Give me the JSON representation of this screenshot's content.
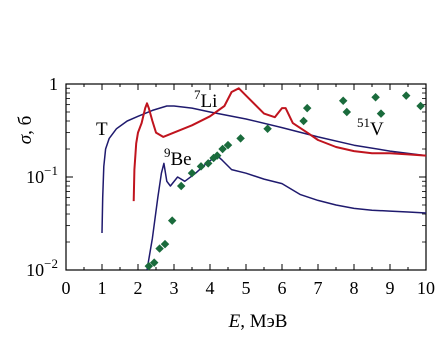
{
  "chart_data": {
    "type": "line",
    "xlabel": "E, МэВ",
    "ylabel": "σ, б",
    "xlim": [
      0,
      10
    ],
    "ylim": [
      0.01,
      1
    ],
    "yscale": "log",
    "grid": false,
    "x_ticks": [
      "0",
      "1",
      "2",
      "3",
      "4",
      "5",
      "6",
      "7",
      "8",
      "9",
      "10"
    ],
    "y_ticks": [
      {
        "value": 1,
        "base": "1",
        "exp": ""
      },
      {
        "value": 0.1,
        "base": "10",
        "exp": "−1"
      },
      {
        "value": 0.01,
        "base": "10",
        "exp": "−2"
      }
    ],
    "series": [
      {
        "name": "T",
        "color": "#1f1a6e",
        "label_base": "T",
        "label_sup": "",
        "x": [
          1.0,
          1.02,
          1.05,
          1.1,
          1.2,
          1.4,
          1.7,
          2.0,
          2.4,
          2.8,
          3.0,
          3.5,
          4.0,
          5.0,
          6.0,
          7.0,
          8.0,
          9.0,
          10.0
        ],
        "y": [
          0.025,
          0.06,
          0.13,
          0.2,
          0.26,
          0.33,
          0.4,
          0.45,
          0.52,
          0.58,
          0.58,
          0.55,
          0.5,
          0.42,
          0.34,
          0.27,
          0.22,
          0.19,
          0.17
        ]
      },
      {
        "name": "7Li",
        "color": "#c0141e",
        "label_base": "Li",
        "label_sup": "7",
        "x": [
          1.88,
          1.9,
          1.95,
          2.0,
          2.1,
          2.2,
          2.25,
          2.3,
          2.4,
          2.5,
          2.7,
          3.0,
          3.5,
          4.0,
          4.4,
          4.6,
          4.8,
          5.0,
          5.5,
          5.8,
          6.0,
          6.1,
          6.3,
          6.7,
          7.0,
          7.5,
          8.0,
          8.5,
          9.0,
          9.5,
          10.0
        ],
        "y": [
          0.055,
          0.12,
          0.23,
          0.3,
          0.38,
          0.55,
          0.62,
          0.55,
          0.4,
          0.3,
          0.27,
          0.3,
          0.36,
          0.45,
          0.58,
          0.82,
          0.9,
          0.75,
          0.48,
          0.44,
          0.55,
          0.55,
          0.38,
          0.3,
          0.25,
          0.21,
          0.19,
          0.18,
          0.18,
          0.175,
          0.17
        ]
      },
      {
        "name": "9Be",
        "color": "#1f1a6e",
        "label_base": "Be",
        "label_sup": "9",
        "x": [
          2.25,
          2.4,
          2.55,
          2.65,
          2.72,
          2.8,
          2.9,
          3.1,
          3.3,
          3.6,
          3.9,
          4.2,
          4.35,
          4.6,
          5.0,
          5.5,
          6.0,
          6.5,
          7.0,
          7.5,
          8.0,
          8.5,
          9.0,
          9.5,
          10.0
        ],
        "y": [
          0.01,
          0.022,
          0.06,
          0.11,
          0.14,
          0.09,
          0.08,
          0.1,
          0.09,
          0.11,
          0.14,
          0.17,
          0.15,
          0.12,
          0.11,
          0.095,
          0.085,
          0.065,
          0.056,
          0.05,
          0.046,
          0.044,
          0.043,
          0.042,
          0.041
        ]
      },
      {
        "name": "51V",
        "color": "#1a6b3c",
        "style": "markers",
        "label_base": "V",
        "label_sup": "51",
        "x": [
          2.3,
          2.45,
          2.6,
          2.75,
          2.95,
          3.2,
          3.5,
          3.75,
          3.95,
          4.1,
          4.2,
          4.35,
          4.5,
          4.85,
          5.6,
          6.6,
          6.7,
          7.7,
          7.8,
          8.6,
          8.75,
          9.45,
          9.85
        ],
        "y": [
          0.011,
          0.012,
          0.017,
          0.019,
          0.034,
          0.08,
          0.11,
          0.13,
          0.14,
          0.16,
          0.17,
          0.2,
          0.22,
          0.26,
          0.33,
          0.4,
          0.55,
          0.66,
          0.5,
          0.72,
          0.48,
          0.75,
          0.58
        ]
      }
    ]
  }
}
